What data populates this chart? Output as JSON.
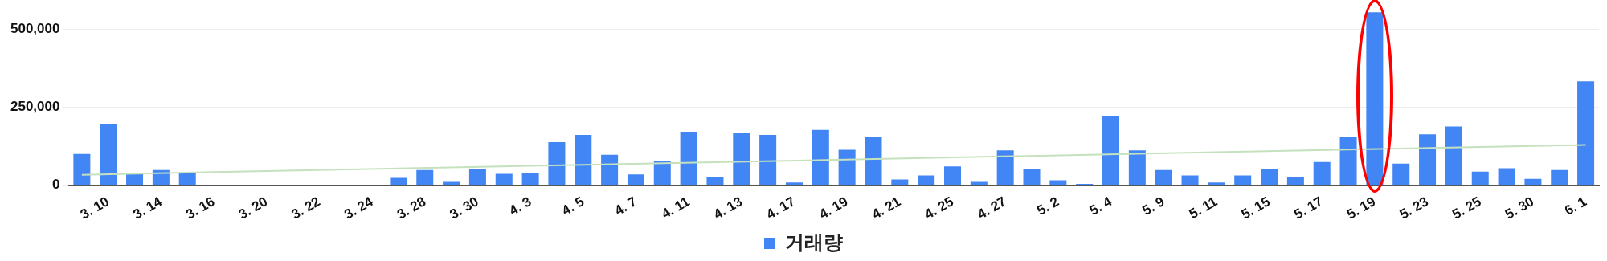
{
  "chart_data": {
    "type": "bar",
    "categories": [
      null,
      "3. 10",
      null,
      "3. 14",
      null,
      "3. 16",
      null,
      "3. 20",
      null,
      "3. 22",
      null,
      "3. 24",
      null,
      "3. 28",
      null,
      "3. 30",
      null,
      "4. 3",
      null,
      "4. 5",
      null,
      "4. 7",
      null,
      "4. 11",
      null,
      "4. 13",
      null,
      "4. 17",
      null,
      "4. 19",
      null,
      "4. 21",
      null,
      "4. 25",
      null,
      "4. 27",
      null,
      "5. 2",
      null,
      "5. 4",
      null,
      "5. 9",
      null,
      "5. 11",
      null,
      "5. 15",
      null,
      "5. 17",
      null,
      "5. 19",
      null,
      "5. 23",
      null,
      "5. 25",
      null,
      "5. 30",
      null,
      "6. 1"
    ],
    "series": [
      {
        "name": "거래량",
        "color": "#4285f4",
        "values": [
          100000,
          196000,
          35000,
          48000,
          40000,
          0,
          0,
          0,
          0,
          0,
          0,
          0,
          23000,
          48000,
          10000,
          50000,
          36000,
          40000,
          138000,
          161000,
          97000,
          34000,
          78000,
          171000,
          26000,
          167000,
          161000,
          8000,
          177000,
          113000,
          153000,
          18000,
          31000,
          60000,
          10000,
          111000,
          50000,
          15000,
          4000,
          221000,
          111000,
          48000,
          31000,
          8000,
          31000,
          52000,
          26000,
          74000,
          155000,
          555000,
          69000,
          163000,
          188000,
          43000,
          54000,
          20000,
          48000,
          333000
        ]
      },
      {
        "type": "line",
        "color": "#c5e1be",
        "values": [
          33000,
          null,
          null,
          null,
          null,
          null,
          null,
          null,
          null,
          null,
          null,
          null,
          null,
          null,
          null,
          null,
          null,
          null,
          null,
          null,
          null,
          null,
          null,
          null,
          null,
          null,
          null,
          null,
          null,
          null,
          null,
          null,
          null,
          null,
          null,
          null,
          null,
          null,
          null,
          null,
          null,
          null,
          null,
          null,
          null,
          null,
          null,
          null,
          null,
          null,
          null,
          null,
          null,
          null,
          null,
          null,
          null,
          129000
        ]
      }
    ],
    "ylim": [
      0,
      560000
    ],
    "yticks": [
      0,
      {
        "value": 250000,
        "label": "250,000"
      },
      {
        "value": 500000,
        "label": "500,000"
      }
    ],
    "grid": "y",
    "legend": "bottom"
  }
}
